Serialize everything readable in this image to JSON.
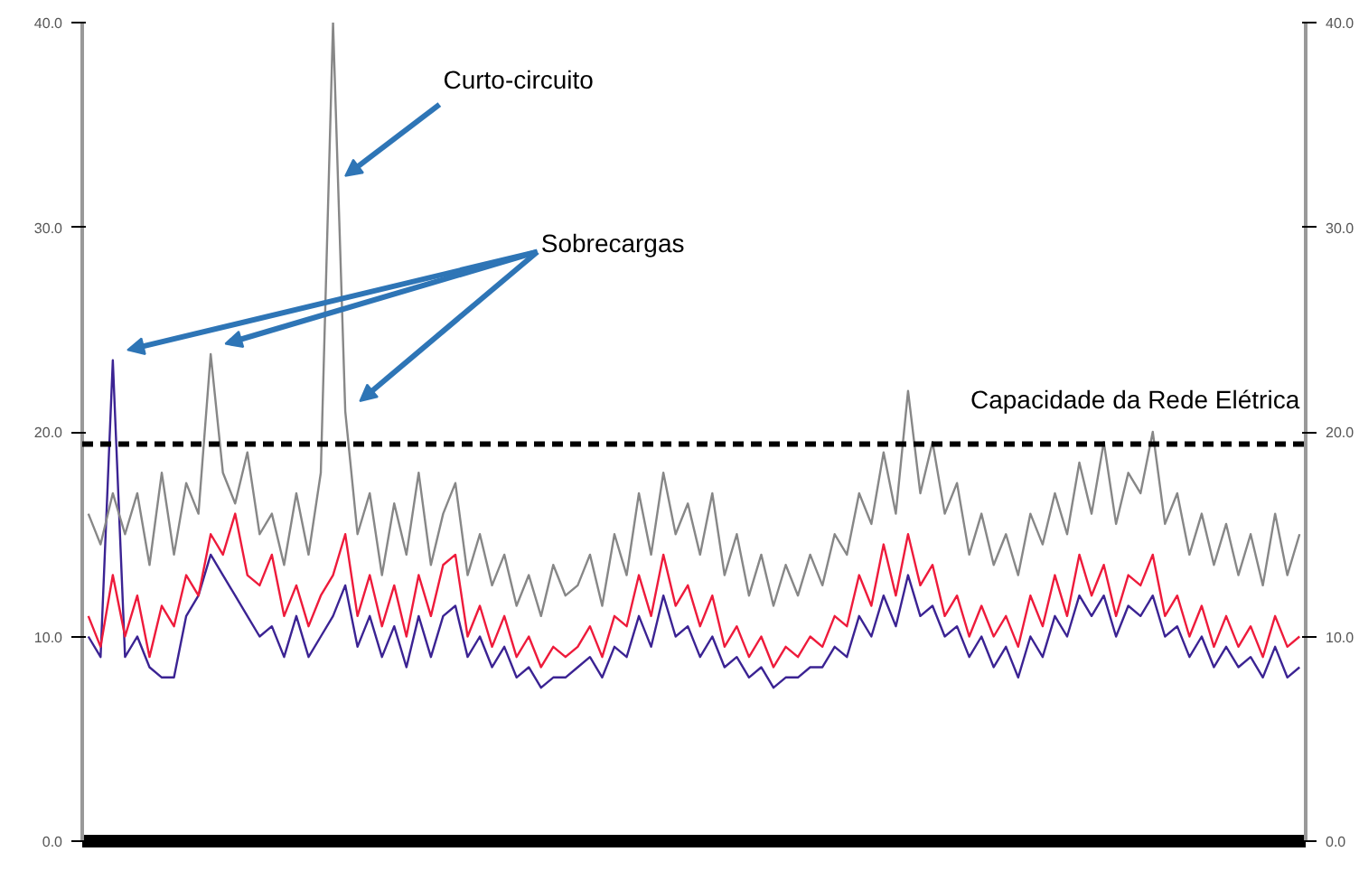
{
  "chart_data": {
    "type": "line",
    "categories": [
      null,
      null,
      null,
      null,
      null,
      null,
      null,
      null,
      null,
      null,
      null,
      null,
      null,
      null,
      null,
      null,
      null,
      null,
      null,
      null,
      null,
      null,
      null,
      null,
      null,
      null,
      null,
      null,
      null,
      null,
      null,
      null,
      null,
      null,
      null,
      null,
      null,
      null,
      null,
      null,
      null,
      null,
      null,
      null,
      null,
      null,
      null,
      null,
      null,
      null,
      null,
      null,
      null,
      null,
      null,
      null,
      null,
      null,
      null,
      null,
      null,
      null,
      null,
      null,
      null,
      null,
      null,
      null,
      null,
      null,
      null,
      null,
      null,
      null,
      null,
      null,
      null,
      null,
      null,
      null,
      null,
      null,
      null,
      null,
      null,
      null,
      null,
      null,
      null,
      null,
      null,
      null,
      null,
      null,
      null,
      null,
      null,
      null,
      null,
      null
    ],
    "series": [
      {
        "color": "#3b2393",
        "values": [
          10,
          9,
          23.5,
          9,
          10,
          8.5,
          8,
          8,
          11,
          12,
          14,
          13,
          12,
          11,
          10,
          10.5,
          9,
          11,
          9,
          10,
          11,
          12.5,
          9.5,
          11,
          9,
          10.5,
          8.5,
          11,
          9,
          11,
          11.5,
          9,
          10,
          8.5,
          9.5,
          8,
          8.5,
          7.5,
          8,
          8,
          8.5,
          9,
          8,
          9.5,
          9,
          11,
          9.5,
          12,
          10,
          10.5,
          9,
          10,
          8.5,
          9,
          8,
          8.5,
          7.5,
          8,
          8,
          8.5,
          8.5,
          9.5,
          9,
          11,
          10,
          12,
          10.5,
          13,
          11,
          11.5,
          10,
          10.5,
          9,
          10,
          8.5,
          9.5,
          8,
          10,
          9,
          11,
          10,
          12,
          11,
          12,
          10,
          11.5,
          11,
          12,
          10,
          10.5,
          9,
          10,
          8.5,
          9.5,
          8.5,
          9,
          8,
          9.5,
          8,
          8.5
        ]
      },
      {
        "color": "#ee1b3b",
        "values": [
          11,
          9.5,
          13,
          10,
          12,
          9,
          11.5,
          10.5,
          13,
          12,
          15,
          14,
          16,
          13,
          12.5,
          14,
          11,
          12.5,
          10.5,
          12,
          13,
          15,
          11,
          13,
          10.5,
          12.5,
          10,
          13,
          11,
          13.5,
          14,
          10,
          11.5,
          9.5,
          11,
          9,
          10,
          8.5,
          9.5,
          9,
          9.5,
          10.5,
          9,
          11,
          10.5,
          13,
          11,
          14,
          11.5,
          12.5,
          10.5,
          12,
          9.5,
          10.5,
          9,
          10,
          8.5,
          9.5,
          9,
          10,
          9.5,
          11,
          10.5,
          13,
          11.5,
          14.5,
          12,
          15,
          12.5,
          13.5,
          11,
          12,
          10,
          11.5,
          10,
          11,
          9.5,
          12,
          10.5,
          13,
          11,
          14,
          12,
          13.5,
          11,
          13,
          12.5,
          14,
          11,
          12,
          10,
          11.5,
          9.5,
          11,
          9.5,
          10.5,
          9,
          11,
          9.5,
          10
        ]
      },
      {
        "color": "#878787",
        "values": [
          16,
          14.5,
          17,
          15,
          17,
          13.5,
          18,
          14,
          17.5,
          16,
          23.8,
          18,
          16.5,
          19,
          15,
          16,
          13.5,
          17,
          14,
          18,
          40,
          21,
          15,
          17,
          13,
          16.5,
          14,
          18,
          13.5,
          16,
          17.5,
          13,
          15,
          12.5,
          14,
          11.5,
          13,
          11,
          13.5,
          12,
          12.5,
          14,
          11.5,
          15,
          13,
          17,
          14,
          18,
          15,
          16.5,
          14,
          17,
          13,
          15,
          12,
          14,
          11.5,
          13.5,
          12,
          14,
          12.5,
          15,
          14,
          17,
          15.5,
          19,
          16,
          22,
          17,
          19.5,
          16,
          17.5,
          14,
          16,
          13.5,
          15,
          13,
          16,
          14.5,
          17,
          15,
          18.5,
          16,
          19.5,
          15.5,
          18,
          17,
          20,
          15.5,
          17,
          14,
          16,
          13.5,
          15.5,
          13,
          15,
          12.5,
          16,
          13,
          15
        ]
      }
    ],
    "ylim": [
      0,
      40
    ],
    "yticks": [
      {
        "value": 0,
        "label": "0.0"
      },
      {
        "value": 10,
        "label": "10.0"
      },
      {
        "value": 20,
        "label": "20.0"
      },
      {
        "value": 30,
        "label": "30.0"
      },
      {
        "value": 40,
        "label": "40.0"
      }
    ],
    "y2lim": [
      0,
      40
    ],
    "y2ticks": [
      {
        "value": 0,
        "label": "0.0"
      },
      {
        "value": 10,
        "label": "10.0"
      },
      {
        "value": 20,
        "label": "20.0"
      },
      {
        "value": 30,
        "label": "30.0"
      },
      {
        "value": 40,
        "label": "40.0"
      }
    ],
    "tick_labels": "y",
    "grid": false,
    "ref_lines": [
      {
        "axis": "y",
        "value": 19.4,
        "label": "Capacidade da Rede Elétrica",
        "color": "#000000",
        "line_style": "dashed"
      }
    ],
    "annotations": [
      "Curto-circuito",
      "Sobrecargas"
    ]
  }
}
